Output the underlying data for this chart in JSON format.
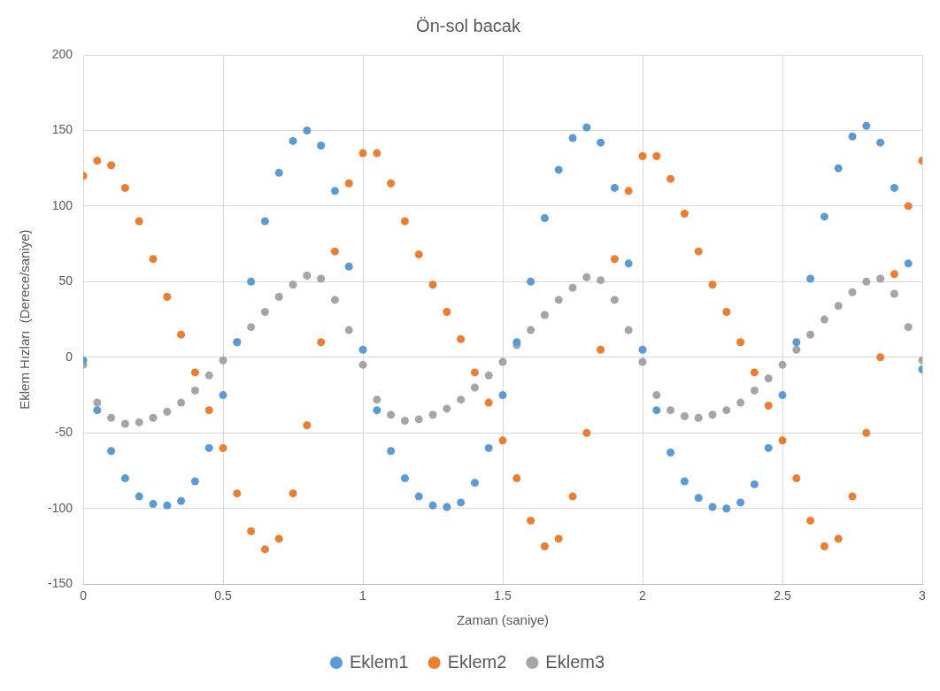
{
  "chart_data": {
    "type": "scatter",
    "title": "Ön-sol bacak",
    "xlabel": "Zaman (saniye)",
    "ylabel": "Eklem Hızları  (Derece/saniye)",
    "x": [
      0,
      0.05,
      0.1,
      0.15,
      0.2,
      0.25,
      0.3,
      0.35,
      0.4,
      0.45,
      0.5,
      0.55,
      0.6,
      0.65,
      0.7,
      0.75,
      0.8,
      0.85,
      0.9,
      0.95,
      1,
      1.05,
      1.1,
      1.15,
      1.2,
      1.25,
      1.3,
      1.35,
      1.4,
      1.45,
      1.5,
      1.55,
      1.6,
      1.65,
      1.7,
      1.75,
      1.8,
      1.85,
      1.9,
      1.95,
      2,
      2.05,
      2.1,
      2.15,
      2.2,
      2.25,
      2.3,
      2.35,
      2.4,
      2.45,
      2.5,
      2.55,
      2.6,
      2.65,
      2.7,
      2.75,
      2.8,
      2.85,
      2.9,
      2.95,
      3
    ],
    "series": [
      {
        "name": "Eklem1",
        "color": "#5b9bd5",
        "values": [
          -2,
          -35,
          -62,
          -80,
          -92,
          -97,
          -98,
          -95,
          -82,
          -60,
          -25,
          10,
          50,
          90,
          122,
          143,
          150,
          140,
          110,
          60,
          5,
          -35,
          -62,
          -80,
          -92,
          -98,
          -99,
          -96,
          -83,
          -60,
          -25,
          10,
          50,
          92,
          124,
          145,
          152,
          142,
          112,
          62,
          5,
          -35,
          -63,
          -82,
          -93,
          -99,
          -100,
          -96,
          -84,
          -60,
          -25,
          10,
          52,
          93,
          125,
          146,
          153,
          142,
          112,
          62,
          -8
        ]
      },
      {
        "name": "Eklem2",
        "color": "#ed7d31",
        "values": [
          120,
          130,
          127,
          112,
          90,
          65,
          40,
          15,
          -10,
          -35,
          -60,
          -90,
          -115,
          -127,
          -120,
          -90,
          -45,
          10,
          70,
          115,
          135,
          135,
          115,
          90,
          68,
          48,
          30,
          12,
          -10,
          -30,
          -55,
          -80,
          -108,
          -125,
          -120,
          -92,
          -50,
          5,
          65,
          110,
          133,
          133,
          118,
          95,
          70,
          48,
          30,
          10,
          -10,
          -32,
          -55,
          -80,
          -108,
          -125,
          -120,
          -92,
          -50,
          0,
          55,
          100,
          130
        ]
      },
      {
        "name": "Eklem3",
        "color": "#a5a5a5",
        "values": [
          -5,
          -30,
          -40,
          -44,
          -43,
          -40,
          -36,
          -30,
          -22,
          -12,
          -2,
          10,
          20,
          30,
          40,
          48,
          54,
          52,
          38,
          18,
          -5,
          -28,
          -38,
          -42,
          -41,
          -38,
          -34,
          -28,
          -20,
          -12,
          -3,
          8,
          18,
          28,
          38,
          46,
          53,
          51,
          38,
          18,
          -3,
          -25,
          -35,
          -39,
          -40,
          -38,
          -35,
          -30,
          -22,
          -14,
          -5,
          5,
          15,
          25,
          34,
          43,
          50,
          52,
          42,
          20,
          -2
        ]
      }
    ],
    "xlim": [
      0,
      3
    ],
    "xticks": [
      0,
      0.5,
      1,
      1.5,
      2,
      2.5,
      3
    ],
    "ylim": [
      -150,
      200
    ],
    "yticks": [
      -150,
      -100,
      -50,
      0,
      50,
      100,
      150,
      200
    ],
    "grid": true,
    "legend": "bottom",
    "marker": "circle"
  }
}
